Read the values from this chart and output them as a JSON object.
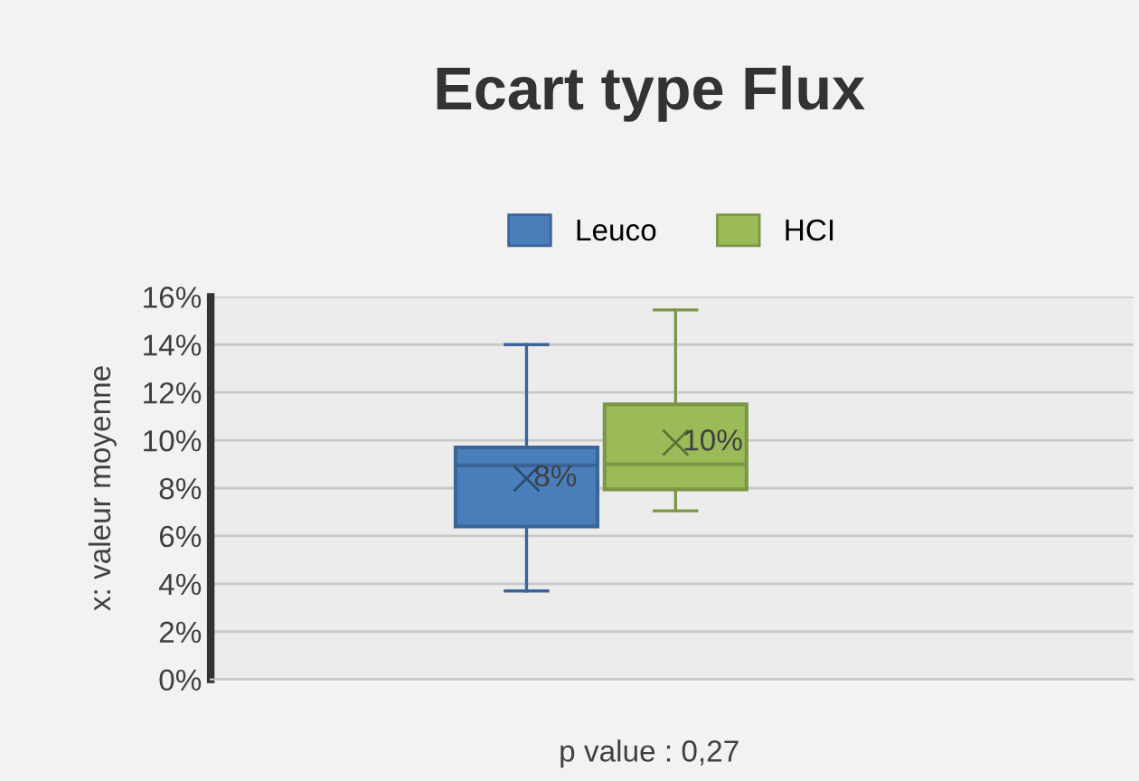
{
  "chart_data": {
    "type": "box",
    "title": "Ecart type Flux",
    "ylabel": "x: valeur moyenne",
    "categories": [
      null
    ],
    "series": [
      {
        "name": "Leuco",
        "color": "#4a7ebb",
        "boxes": [
          {
            "low": 3.7,
            "q1": 6.4,
            "median": 8.95,
            "q3": 9.7,
            "high": 14.0,
            "mean": 8.4
          }
        ],
        "value_labels": [
          "8%"
        ]
      },
      {
        "name": "HCI",
        "color": "#9bbb59",
        "boxes": [
          {
            "low": 7.05,
            "q1": 7.95,
            "median": 9.0,
            "q3": 11.5,
            "high": 15.45,
            "mean": 9.9
          }
        ],
        "value_labels": [
          "10%"
        ]
      }
    ],
    "ylim": [
      0,
      16
    ],
    "yticks": [
      {
        "value": 0,
        "label": "0%"
      },
      {
        "value": 2,
        "label": "2%"
      },
      {
        "value": 4,
        "label": "4%"
      },
      {
        "value": 6,
        "label": "6%"
      },
      {
        "value": 8,
        "label": "8%"
      },
      {
        "value": 10,
        "label": "10%"
      },
      {
        "value": 12,
        "label": "12%"
      },
      {
        "value": 14,
        "label": "14%"
      },
      {
        "value": 16,
        "label": "16%"
      }
    ],
    "grid": "y",
    "legend": "top",
    "annotations": [
      "p value : 0,27"
    ]
  }
}
